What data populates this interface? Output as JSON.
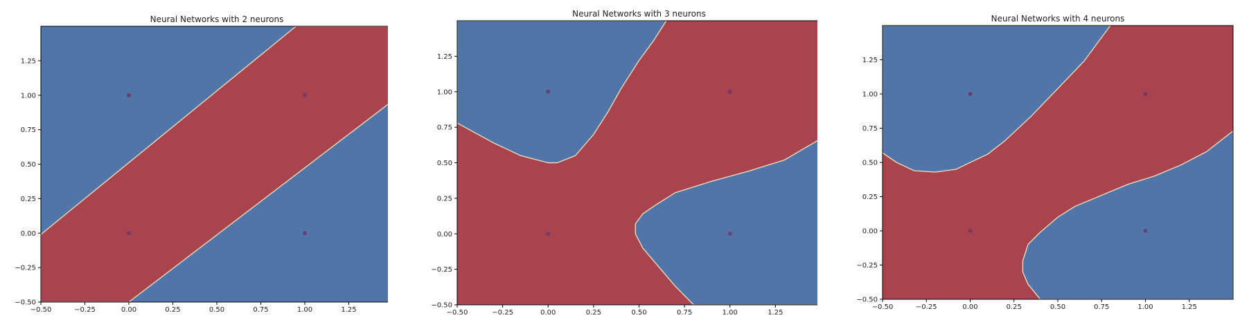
{
  "colors": {
    "class_red": "#A9434F",
    "class_blue": "#5174A9",
    "boundary": "#E8DDB5",
    "point": "#6B3A66",
    "axis": "#000000"
  },
  "chart_data": [
    {
      "type": "contour",
      "title": "Neural Networks with 2 neurons",
      "xlim": [
        -0.5,
        1.5
      ],
      "ylim": [
        -0.5,
        1.5
      ],
      "xticks": [
        -0.5,
        -0.25,
        0.0,
        0.25,
        0.5,
        0.75,
        1.0,
        1.25
      ],
      "yticks": [
        -0.5,
        -0.25,
        0.0,
        0.25,
        0.5,
        0.75,
        1.0,
        1.25
      ],
      "xtick_labels": [
        "−0.50",
        "−0.25",
        "0.00",
        "0.25",
        "0.50",
        "0.75",
        "1.00",
        "1.25"
      ],
      "ytick_labels": [
        "−0.50",
        "−0.25",
        "0.00",
        "0.25",
        "0.50",
        "0.75",
        "1.00",
        "1.25"
      ],
      "points": [
        {
          "x": 0,
          "y": 0,
          "label": 0
        },
        {
          "x": 0,
          "y": 1,
          "label": 1
        },
        {
          "x": 1,
          "y": 0,
          "label": 1
        },
        {
          "x": 1,
          "y": 1,
          "label": 0
        }
      ],
      "regions": [
        {
          "class": "red",
          "polygon": [
            [
              -0.5,
              -0.5
            ],
            [
              -0.5,
              -0.01
            ],
            [
              0.95,
              1.5
            ],
            [
              1.5,
              1.5
            ],
            [
              1.5,
              0.96
            ],
            [
              0.0,
              -0.5
            ]
          ]
        }
      ]
    },
    {
      "type": "contour",
      "title": "Neural Networks with 3 neurons",
      "xlim": [
        -0.5,
        1.5
      ],
      "ylim": [
        -0.5,
        1.5
      ],
      "xticks": [
        -0.5,
        -0.25,
        0.0,
        0.25,
        0.5,
        0.75,
        1.0,
        1.25
      ],
      "yticks": [
        -0.5,
        -0.25,
        0.0,
        0.25,
        0.5,
        0.75,
        1.0,
        1.25
      ],
      "xtick_labels": [
        "−0.50",
        "−0.25",
        "0.00",
        "0.25",
        "0.50",
        "0.75",
        "1.00",
        "1.25"
      ],
      "ytick_labels": [
        "−0.50",
        "−0.25",
        "0.00",
        "0.25",
        "0.50",
        "0.75",
        "1.00",
        "1.25"
      ],
      "points": [
        {
          "x": 0,
          "y": 0,
          "label": 0
        },
        {
          "x": 0,
          "y": 1,
          "label": 1
        },
        {
          "x": 1,
          "y": 0,
          "label": 1
        },
        {
          "x": 1,
          "y": 1,
          "label": 0
        }
      ],
      "regions": [
        {
          "class": "blue",
          "polygon": [
            [
              -0.5,
              1.5
            ],
            [
              -0.5,
              0.78
            ],
            [
              -0.3,
              0.64
            ],
            [
              -0.15,
              0.55
            ],
            [
              0.0,
              0.5
            ],
            [
              0.05,
              0.5
            ],
            [
              0.15,
              0.55
            ],
            [
              0.25,
              0.7
            ],
            [
              0.33,
              0.86
            ],
            [
              0.4,
              1.02
            ],
            [
              0.5,
              1.22
            ],
            [
              0.58,
              1.36
            ],
            [
              0.65,
              1.5
            ]
          ]
        },
        {
          "class": "blue",
          "polygon": [
            [
              1.5,
              -0.5
            ],
            [
              0.8,
              -0.5
            ],
            [
              0.7,
              -0.37
            ],
            [
              0.6,
              -0.22
            ],
            [
              0.52,
              -0.1
            ],
            [
              0.48,
              0.0
            ],
            [
              0.48,
              0.07
            ],
            [
              0.52,
              0.14
            ],
            [
              0.6,
              0.21
            ],
            [
              0.7,
              0.29
            ],
            [
              0.9,
              0.37
            ],
            [
              1.1,
              0.44
            ],
            [
              1.3,
              0.52
            ],
            [
              1.5,
              0.67
            ]
          ]
        }
      ]
    },
    {
      "type": "contour",
      "title": "Neural Networks with 4 neurons",
      "xlim": [
        -0.5,
        1.5
      ],
      "ylim": [
        -0.5,
        1.5
      ],
      "xticks": [
        -0.5,
        -0.25,
        0.0,
        0.25,
        0.5,
        0.75,
        1.0,
        1.25
      ],
      "yticks": [
        -0.5,
        -0.25,
        0.0,
        0.25,
        0.5,
        0.75,
        1.0,
        1.25
      ],
      "xtick_labels": [
        "−0.50",
        "−0.25",
        "0.00",
        "0.25",
        "0.50",
        "0.75",
        "1.00",
        "1.25"
      ],
      "ytick_labels": [
        "−0.50",
        "−0.25",
        "0.00",
        "0.25",
        "0.50",
        "0.75",
        "1.00",
        "1.25"
      ],
      "points": [
        {
          "x": 0,
          "y": 0,
          "label": 0
        },
        {
          "x": 0,
          "y": 1,
          "label": 1
        },
        {
          "x": 1,
          "y": 0,
          "label": 1
        },
        {
          "x": 1,
          "y": 1,
          "label": 0
        }
      ],
      "regions": [
        {
          "class": "blue",
          "polygon": [
            [
              -0.5,
              1.5
            ],
            [
              -0.5,
              0.57
            ],
            [
              -0.42,
              0.5
            ],
            [
              -0.32,
              0.44
            ],
            [
              -0.2,
              0.43
            ],
            [
              -0.08,
              0.45
            ],
            [
              0.0,
              0.5
            ],
            [
              0.1,
              0.56
            ],
            [
              0.2,
              0.66
            ],
            [
              0.35,
              0.84
            ],
            [
              0.5,
              1.04
            ],
            [
              0.65,
              1.24
            ],
            [
              0.8,
              1.5
            ]
          ]
        },
        {
          "class": "blue",
          "polygon": [
            [
              1.5,
              -0.5
            ],
            [
              0.4,
              -0.5
            ],
            [
              0.33,
              -0.39
            ],
            [
              0.3,
              -0.3
            ],
            [
              0.3,
              -0.22
            ],
            [
              0.33,
              -0.1
            ],
            [
              0.4,
              -0.01
            ],
            [
              0.5,
              0.1
            ],
            [
              0.6,
              0.18
            ],
            [
              0.75,
              0.26
            ],
            [
              0.9,
              0.34
            ],
            [
              1.05,
              0.4
            ],
            [
              1.2,
              0.48
            ],
            [
              1.35,
              0.58
            ],
            [
              1.5,
              0.73
            ]
          ]
        }
      ]
    }
  ]
}
